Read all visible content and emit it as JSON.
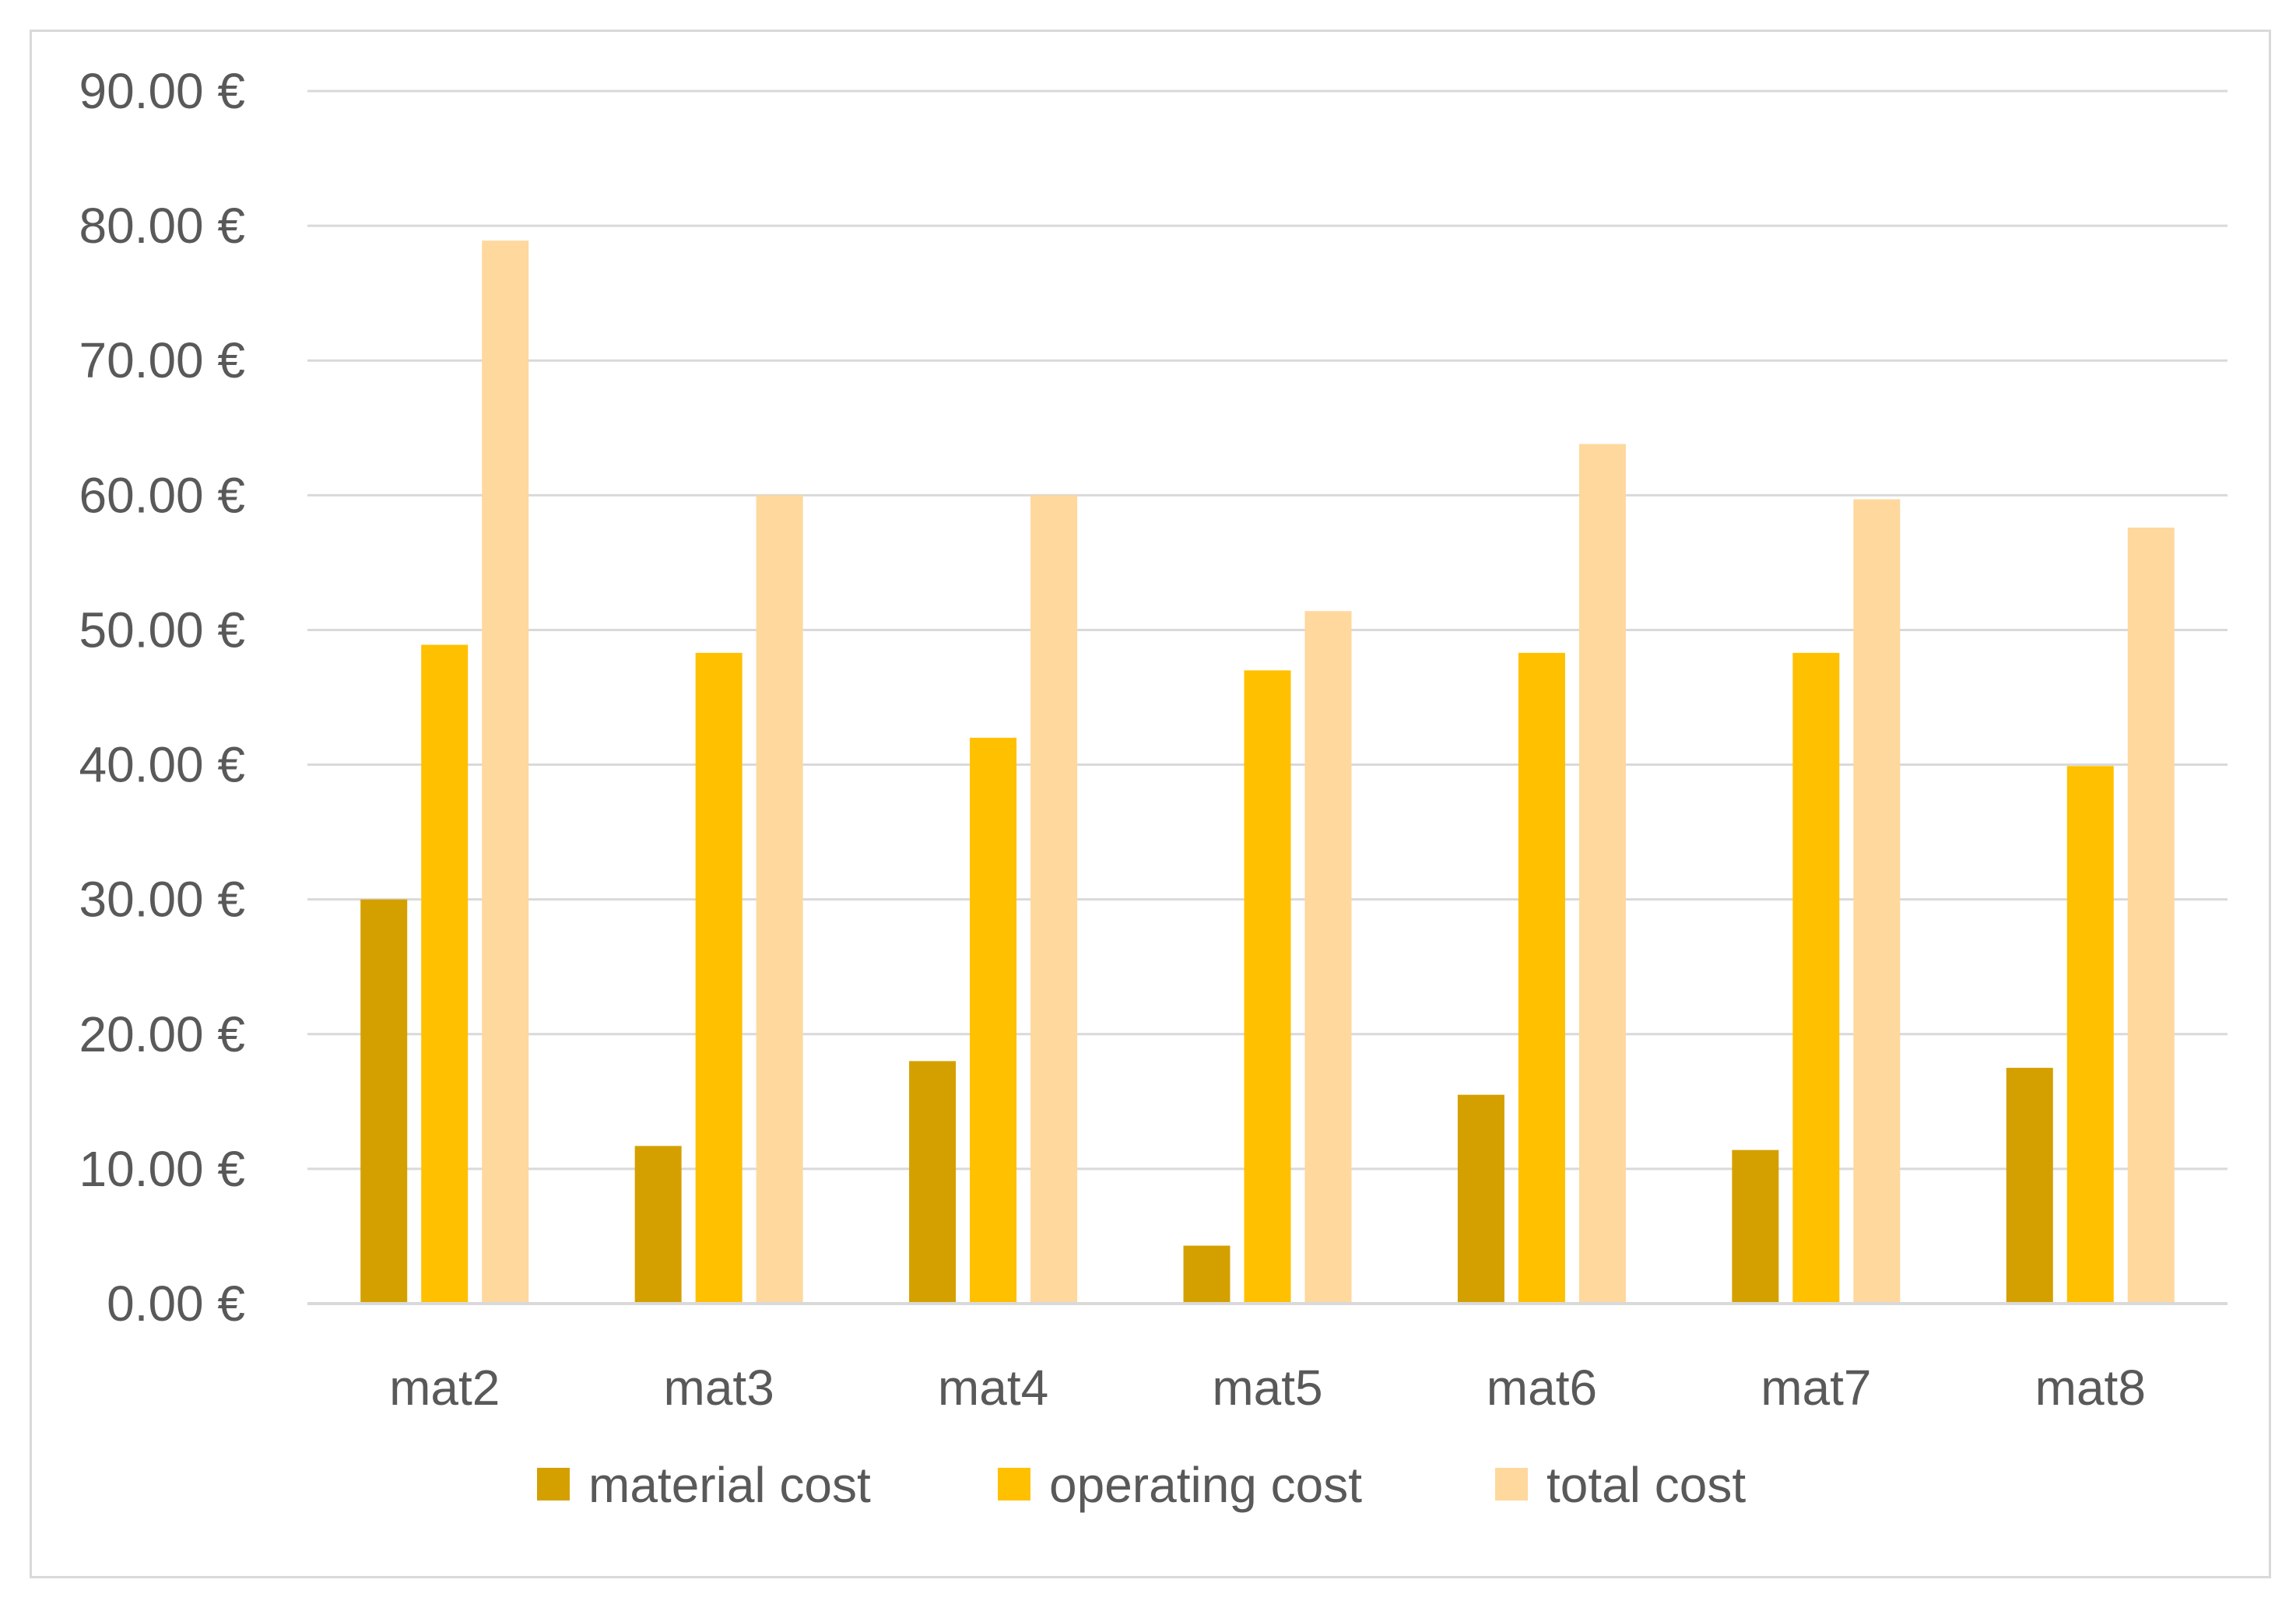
{
  "chart_data": {
    "type": "bar",
    "title": "",
    "xlabel": "",
    "ylabel": "",
    "categories": [
      "mat2",
      "mat3",
      "mat4",
      "mat5",
      "mat6",
      "mat7",
      "mat8"
    ],
    "series": [
      {
        "name": "material cost",
        "color": "#d4a000",
        "values": [
          30.0,
          11.7,
          18.0,
          4.3,
          15.5,
          11.4,
          17.5
        ]
      },
      {
        "name": "operating cost",
        "color": "#ffc000",
        "values": [
          48.9,
          48.3,
          42.0,
          47.0,
          48.3,
          48.3,
          39.9
        ]
      },
      {
        "name": "total cost",
        "color": "#fed89d",
        "values": [
          78.9,
          60.0,
          60.0,
          51.4,
          63.8,
          59.7,
          57.6
        ]
      }
    ],
    "ylim": [
      0,
      90
    ],
    "y_ticks": [
      0,
      10,
      20,
      30,
      40,
      50,
      60,
      70,
      80,
      90
    ],
    "y_tick_labels": [
      "0.00 €",
      "10.00 €",
      "20.00 €",
      "30.00 €",
      "40.00 €",
      "50.00 €",
      "60.00 €",
      "70.00 €",
      "80.00 €",
      "90.00 €"
    ],
    "grid": true,
    "legend_position": "bottom",
    "gridline_color": "#d9d9d9"
  }
}
